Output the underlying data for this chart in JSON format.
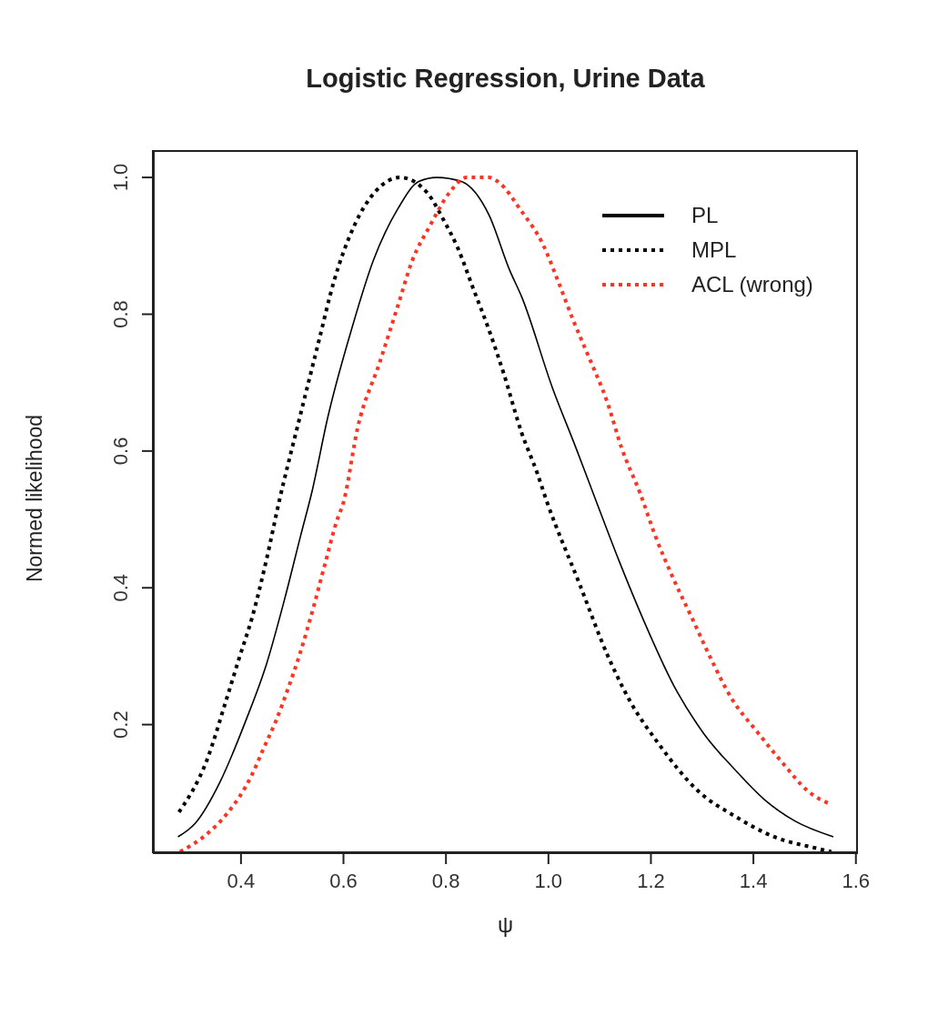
{
  "chart_data": {
    "type": "line",
    "title": "Logistic Regression, Urine Data",
    "xlabel": "ψ",
    "ylabel": "Normed likelihood",
    "xlim": [
      0.228,
      1.604
    ],
    "xticks": [
      0.4,
      0.6,
      0.8,
      {
        "value": 1,
        "label": "1.0"
      },
      1.2,
      1.4,
      1.6
    ],
    "ylim": [
      0.012,
      1.04
    ],
    "yticks": [
      0.2,
      0.4,
      0.6,
      0.8,
      {
        "value": 1,
        "label": "1.0"
      }
    ],
    "grid": false,
    "legend": "top right",
    "marker": "none",
    "series": [
      {
        "name": "PL",
        "color": "#000000",
        "line_style": "solid",
        "x": [
          0.277,
          0.311,
          0.359,
          0.409,
          0.45,
          0.486,
          0.516,
          0.539,
          0.569,
          0.617,
          0.658,
          0.706,
          0.747,
          0.782,
          0.83,
          0.884,
          0.924,
          0.948,
          1.008,
          1.054,
          1.097,
          1.138,
          1.186,
          1.244,
          1.303,
          1.364,
          1.422,
          1.481,
          1.556
        ],
        "values": [
          0.036,
          0.056,
          0.116,
          0.205,
          0.289,
          0.386,
          0.475,
          0.542,
          0.648,
          0.781,
          0.878,
          0.954,
          0.994,
          1.0,
          0.994,
          0.945,
          0.865,
          0.825,
          0.692,
          0.604,
          0.519,
          0.439,
          0.352,
          0.258,
          0.187,
          0.134,
          0.09,
          0.059,
          0.036
        ]
      },
      {
        "name": "MPL",
        "color": "#000000",
        "line_style": "dotted",
        "x": [
          0.279,
          0.334,
          0.37,
          0.396,
          0.423,
          0.45,
          0.475,
          0.51,
          0.551,
          0.581,
          0.622,
          0.663,
          0.711,
          0.764,
          0.796,
          0.823,
          0.853,
          0.884,
          0.912,
          0.948,
          0.978,
          0.996,
          1.061,
          1.115,
          1.161,
          1.214,
          1.292,
          1.364,
          1.44,
          1.524,
          1.552
        ],
        "values": [
          0.072,
          0.149,
          0.233,
          0.296,
          0.36,
          0.442,
          0.528,
          0.635,
          0.758,
          0.847,
          0.931,
          0.98,
          1.0,
          0.977,
          0.937,
          0.897,
          0.838,
          0.777,
          0.715,
          0.626,
          0.568,
          0.528,
          0.405,
          0.302,
          0.232,
          0.173,
          0.103,
          0.066,
          0.036,
          0.019,
          0.014
        ]
      },
      {
        "name": "ACL (wrong)",
        "color": "#ff3322",
        "line_style": "dotted",
        "x": [
          0.281,
          0.332,
          0.373,
          0.421,
          0.444,
          0.468,
          0.492,
          0.516,
          0.542,
          0.564,
          0.587,
          0.6,
          0.628,
          0.67,
          0.706,
          0.734,
          0.77,
          0.805,
          0.841,
          0.884,
          0.901,
          0.948,
          0.99,
          1.019,
          1.049,
          1.079,
          1.115,
          1.143,
          1.179,
          1.209,
          1.244,
          1.28,
          1.316,
          1.356,
          1.41,
          1.458,
          1.506,
          1.552
        ],
        "values": [
          0.014,
          0.039,
          0.07,
          0.126,
          0.165,
          0.205,
          0.253,
          0.306,
          0.373,
          0.435,
          0.498,
          0.525,
          0.635,
          0.728,
          0.812,
          0.878,
          0.931,
          0.976,
          1.0,
          1.0,
          0.994,
          0.95,
          0.901,
          0.848,
          0.79,
          0.737,
          0.671,
          0.604,
          0.538,
          0.475,
          0.413,
          0.356,
          0.298,
          0.24,
          0.187,
          0.143,
          0.103,
          0.083
        ]
      }
    ]
  }
}
